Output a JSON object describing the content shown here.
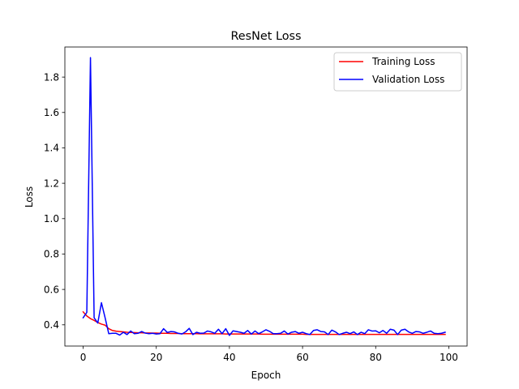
{
  "chart_data": {
    "type": "line",
    "title": "ResNet Loss",
    "xlabel": "Epoch",
    "ylabel": "Loss",
    "xlim": [
      -5,
      105
    ],
    "ylim": [
      0.28,
      1.97
    ],
    "xticks": [
      0,
      20,
      40,
      60,
      80,
      100
    ],
    "yticks": [
      0.4,
      0.6,
      0.8,
      1.0,
      1.2,
      1.4,
      1.6,
      1.8
    ],
    "grid": false,
    "legend_position": "top-right",
    "series": [
      {
        "name": "Training Loss",
        "color": "#ff0000",
        "values": [
          0.473,
          0.45,
          0.435,
          0.425,
          0.413,
          0.404,
          0.398,
          0.378,
          0.368,
          0.364,
          0.362,
          0.36,
          0.358,
          0.357,
          0.356,
          0.355,
          0.355,
          0.354,
          0.354,
          0.353,
          0.353,
          0.352,
          0.352,
          0.352,
          0.351,
          0.351,
          0.351,
          0.35,
          0.35,
          0.35,
          0.35,
          0.35,
          0.349,
          0.349,
          0.349,
          0.349,
          0.349,
          0.349,
          0.349,
          0.348,
          0.348,
          0.348,
          0.348,
          0.348,
          0.348,
          0.348,
          0.348,
          0.348,
          0.348,
          0.347,
          0.347,
          0.347,
          0.347,
          0.347,
          0.347,
          0.347,
          0.347,
          0.347,
          0.347,
          0.347,
          0.347,
          0.346,
          0.346,
          0.346,
          0.346,
          0.346,
          0.346,
          0.346,
          0.346,
          0.346,
          0.346,
          0.346,
          0.346,
          0.346,
          0.346,
          0.346,
          0.346,
          0.346,
          0.346,
          0.346,
          0.346,
          0.346,
          0.346,
          0.346,
          0.346,
          0.346,
          0.346,
          0.346,
          0.346,
          0.346,
          0.346,
          0.346,
          0.346,
          0.346,
          0.346,
          0.346,
          0.346,
          0.346,
          0.346,
          0.346
        ]
      },
      {
        "name": "Validation Loss",
        "color": "#0000ff",
        "values": [
          0.44,
          0.47,
          1.91,
          0.44,
          0.41,
          0.525,
          0.44,
          0.35,
          0.352,
          0.352,
          0.342,
          0.358,
          0.345,
          0.365,
          0.35,
          0.352,
          0.362,
          0.353,
          0.35,
          0.352,
          0.348,
          0.35,
          0.378,
          0.357,
          0.362,
          0.36,
          0.352,
          0.348,
          0.36,
          0.38,
          0.345,
          0.358,
          0.352,
          0.353,
          0.365,
          0.36,
          0.352,
          0.375,
          0.35,
          0.378,
          0.34,
          0.366,
          0.362,
          0.358,
          0.352,
          0.368,
          0.348,
          0.365,
          0.35,
          0.36,
          0.372,
          0.363,
          0.35,
          0.35,
          0.352,
          0.365,
          0.348,
          0.358,
          0.362,
          0.352,
          0.358,
          0.35,
          0.345,
          0.368,
          0.372,
          0.362,
          0.36,
          0.345,
          0.37,
          0.36,
          0.345,
          0.352,
          0.358,
          0.35,
          0.36,
          0.345,
          0.358,
          0.35,
          0.372,
          0.365,
          0.366,
          0.355,
          0.368,
          0.352,
          0.375,
          0.37,
          0.345,
          0.37,
          0.375,
          0.36,
          0.352,
          0.362,
          0.36,
          0.352,
          0.358,
          0.365,
          0.352,
          0.35,
          0.352,
          0.358
        ]
      }
    ]
  }
}
